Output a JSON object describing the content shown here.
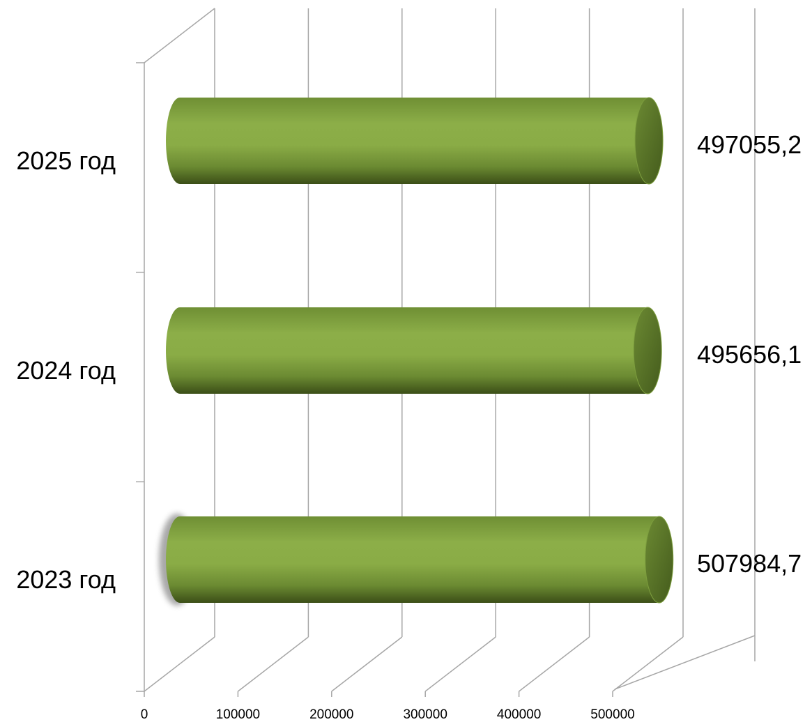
{
  "chart_data": {
    "type": "bar",
    "orientation": "horizontal",
    "style": "3d-cylinder",
    "title": "",
    "xlabel": "",
    "ylabel": "",
    "categories": [
      "2023 год",
      "2024 год",
      "2025 год"
    ],
    "values": [
      507984.7,
      495656.1,
      497055.2
    ],
    "value_labels": [
      "507984,7",
      "495656,1",
      "497055,2"
    ],
    "xlim": [
      0,
      500000
    ],
    "x_ticks": [
      0,
      100000,
      200000,
      300000,
      400000,
      500000
    ],
    "x_tick_labels": [
      "0",
      "100000",
      "200000",
      "300000",
      "400000",
      "500000"
    ],
    "grid": true,
    "legend": "none",
    "bar_color": "#8aac46"
  }
}
